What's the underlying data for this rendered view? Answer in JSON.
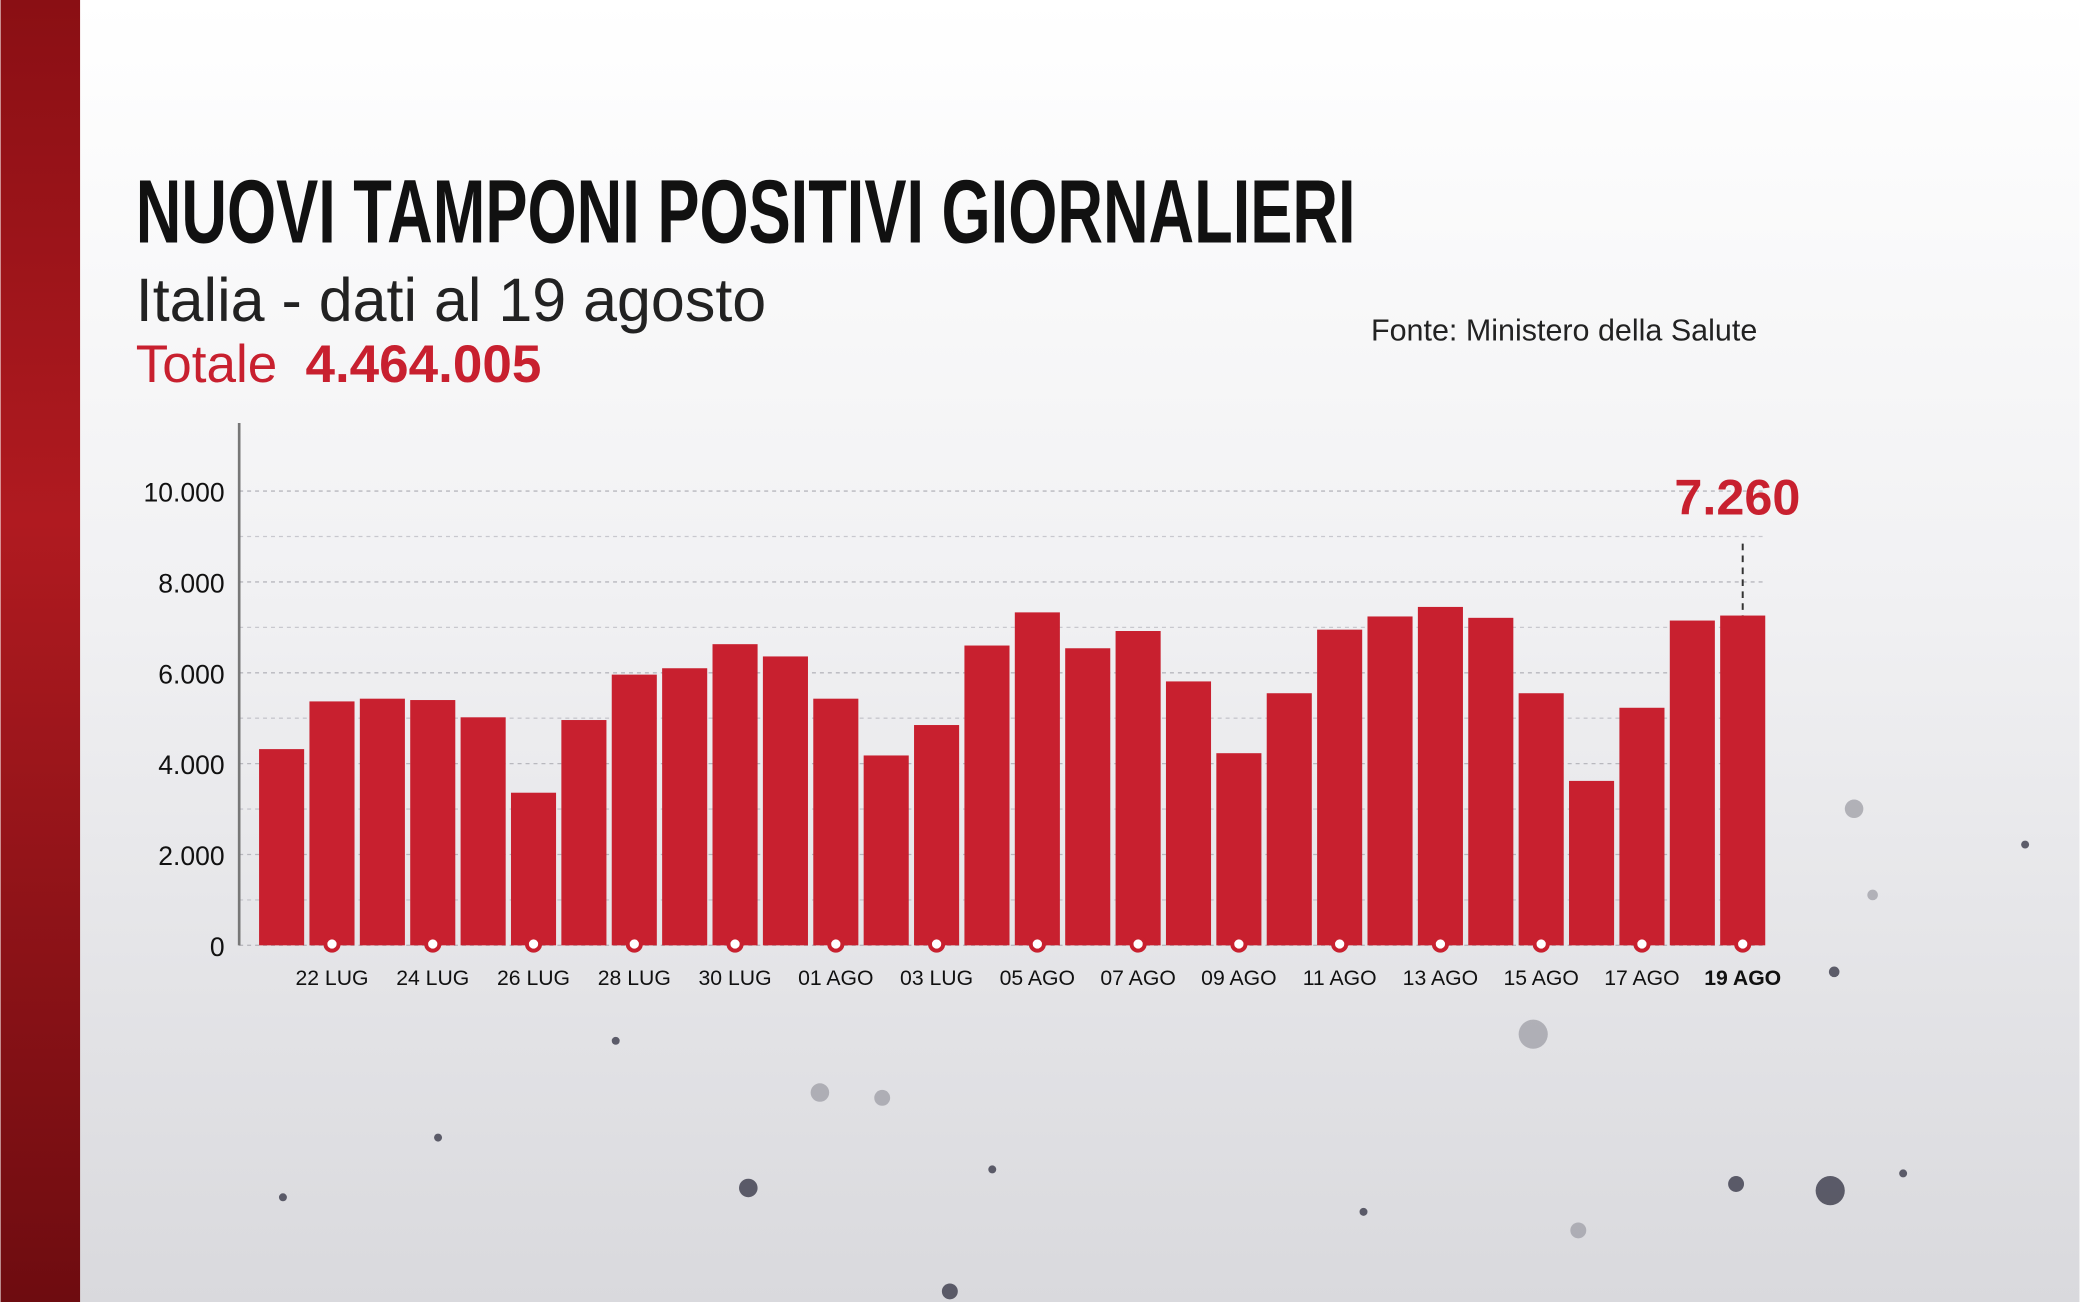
{
  "chart_data": {
    "type": "bar",
    "title": "NUOVI TAMPONI POSITIVI GIORNALIERI",
    "subtitle": "Italia - dati al 19 agosto",
    "total_label": "Totale",
    "total_value": "4.464.005",
    "source": "Fonte: Ministero della Salute",
    "categories": [
      null,
      "22 LUG",
      null,
      "24 LUG",
      null,
      "26 LUG",
      null,
      "28 LUG",
      null,
      "30 LUG",
      null,
      "01 AGO",
      null,
      "03 LUG",
      null,
      "05 AGO",
      null,
      "07 AGO",
      null,
      "09 AGO",
      null,
      "11 AGO",
      null,
      "13 AGO",
      null,
      "15 AGO",
      null,
      "17 AGO",
      null,
      "19 AGO"
    ],
    "values": [
      4320,
      5370,
      5430,
      5400,
      5020,
      3360,
      4960,
      5960,
      6100,
      6630,
      6360,
      5430,
      4180,
      4850,
      6600,
      7330,
      6540,
      6920,
      5810,
      4230,
      5550,
      6950,
      7240,
      7450,
      7210,
      5550,
      3620,
      5230,
      7150,
      7260
    ],
    "value_labels": [
      null,
      null,
      null,
      null,
      null,
      null,
      null,
      null,
      null,
      null,
      null,
      null,
      null,
      null,
      null,
      null,
      null,
      null,
      null,
      null,
      null,
      null,
      null,
      null,
      null,
      null,
      null,
      null,
      null,
      "7.260"
    ],
    "color": "#c8202f",
    "ylim": [
      0,
      11500
    ],
    "yticks": [
      0,
      {
        "value": 2000,
        "label": "2.000"
      },
      {
        "value": 4000,
        "label": "4.000"
      },
      {
        "value": 6000,
        "label": "6.000"
      },
      {
        "value": 8000,
        "label": "8.000"
      },
      {
        "value": 10000,
        "label": "10.000"
      }
    ],
    "grid": true
  }
}
